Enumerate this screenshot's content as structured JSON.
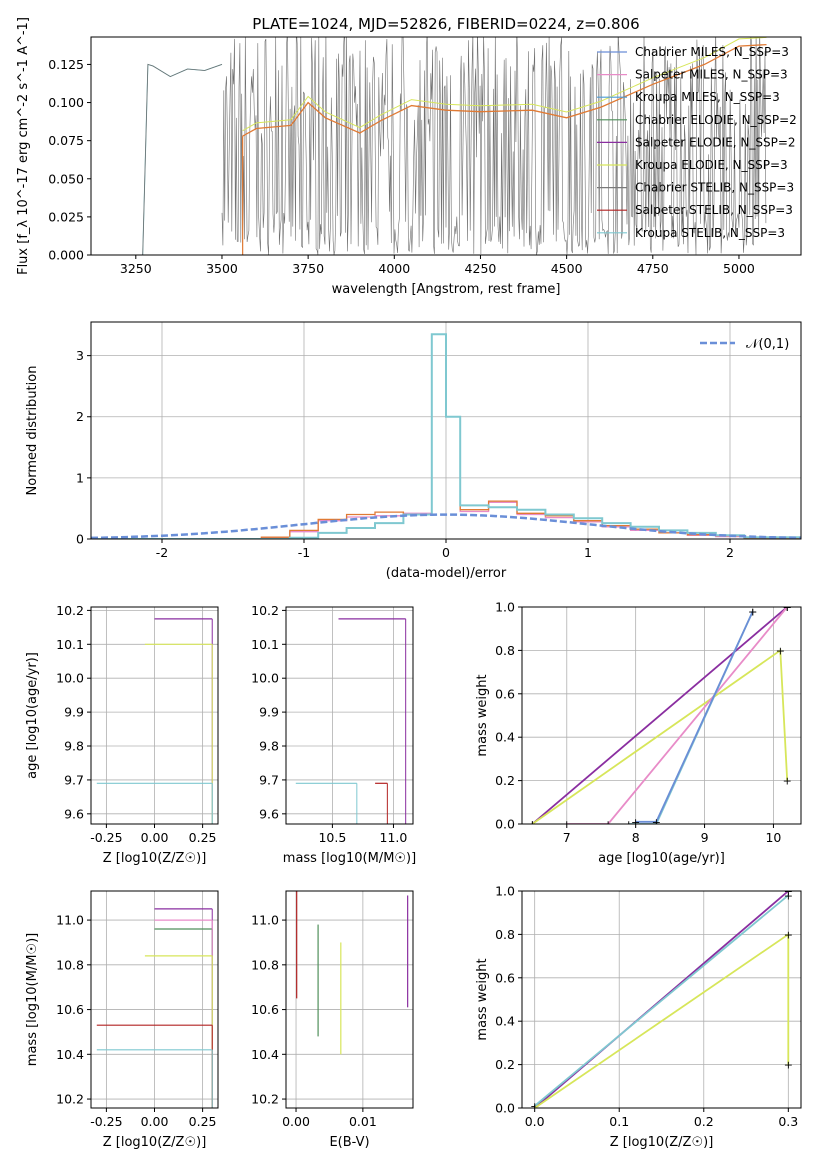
{
  "figure": {
    "title": "PLATE=1024, MJD=52826, FIBERID=0224, z=0.806"
  },
  "colors": {
    "Chabrier MILES": "#6b8ed6",
    "Salpeter MILES": "#e88cc8",
    "Kroupa MILES": "#4c9bd6",
    "Chabrier ELODIE": "#4f8f5a",
    "Salpeter ELODIE": "#8a2ea0",
    "Kroupa ELODIE": "#d7e65a",
    "Chabrier STELIB": "#7a7a7a",
    "Salpeter STELIB": "#b22222",
    "Kroupa STELIB": "#7fc8d0",
    "spectrum": "#6f6f6f",
    "model": "#e07a34",
    "gaussian": "#6a8fd8",
    "grid": "#b0b0b0"
  },
  "chart_data": [
    {
      "id": "spectrum",
      "type": "line",
      "title": "PLATE=1024, MJD=52826, FIBERID=0224, z=0.806",
      "xlabel": "wavelength [Angstrom, rest frame]",
      "ylabel": "Flux [f_λ 10^-17 erg cm^-2 s^-1 A^-1]",
      "xlim": [
        3120,
        5180
      ],
      "ylim": [
        0,
        0.143
      ],
      "xticks": [
        3250,
        3500,
        3750,
        4000,
        4250,
        4500,
        4750,
        5000
      ],
      "yticks": [
        0.0,
        0.025,
        0.05,
        0.075,
        0.1,
        0.125
      ],
      "grid": false,
      "legend_position": "upper-right",
      "legend": [
        "Chabrier MILES, N_SSP=3",
        "Salpeter MILES, N_SSP=3",
        "Kroupa MILES, N_SSP=3",
        "Chabrier ELODIE, N_SSP=2",
        "Salpeter ELODIE, N_SSP=2",
        "Kroupa ELODIE, N_SSP=3",
        "Chabrier STELIB, N_SSP=3",
        "Salpeter STELIB, N_SSP=3",
        "Kroupa STELIB, N_SSP=3"
      ],
      "series": [
        {
          "name": "Chabrier STELIB",
          "role": "observed-spectrum",
          "x": [
            3200,
            3270,
            3285,
            3300,
            3350,
            3400,
            3450,
            3500
          ],
          "values": [
            0.0,
            0.0,
            0.125,
            0.124,
            0.117,
            0.122,
            0.121,
            0.125
          ]
        },
        {
          "name": "Salpeter MILES",
          "role": "model",
          "x": [
            3560,
            3600,
            3700,
            3750,
            3800,
            3900,
            3960,
            4050,
            4150,
            4250,
            4400,
            4500,
            4600,
            4750,
            4900,
            5000,
            5080
          ],
          "values": [
            0.078,
            0.083,
            0.085,
            0.1,
            0.09,
            0.08,
            0.088,
            0.098,
            0.095,
            0.094,
            0.095,
            0.09,
            0.097,
            0.112,
            0.125,
            0.137,
            0.138
          ]
        }
      ]
    },
    {
      "id": "residuals",
      "type": "line",
      "xlabel": "(data-model)/error",
      "ylabel": "Normed distribution",
      "xlim": [
        -2.5,
        2.5
      ],
      "ylim": [
        0,
        3.55
      ],
      "xticks": [
        -2,
        -1,
        0,
        1,
        2
      ],
      "yticks": [
        0,
        1,
        2,
        3
      ],
      "grid": true,
      "legend_position": "upper-right",
      "legend": [
        "𝒩(0,1)"
      ],
      "gaussian": {
        "mean": 0,
        "sigma": 1
      },
      "histogram_edges": [
        -2.5,
        -1.3,
        -1.1,
        -0.9,
        -0.7,
        -0.5,
        -0.3,
        -0.1,
        0.0,
        0.1,
        0.3,
        0.5,
        0.7,
        0.9,
        1.1,
        1.3,
        1.5,
        1.7,
        1.9,
        2.1,
        2.5
      ],
      "series": [
        {
          "name": "Chabrier MILES",
          "values": [
            0.0,
            0.02,
            0.12,
            0.3,
            0.36,
            0.38,
            0.42,
            3.35,
            2.0,
            0.45,
            0.6,
            0.4,
            0.35,
            0.28,
            0.2,
            0.14,
            0.1,
            0.06,
            0.04,
            0.02
          ]
        },
        {
          "name": "Salpeter MILES",
          "values": [
            0.0,
            0.03,
            0.14,
            0.32,
            0.4,
            0.44,
            0.4,
            3.35,
            2.0,
            0.48,
            0.62,
            0.42,
            0.38,
            0.3,
            0.22,
            0.16,
            0.1,
            0.07,
            0.05,
            0.02
          ]
        },
        {
          "name": "Kroupa STELIB",
          "values": [
            0.0,
            0.0,
            0.02,
            0.1,
            0.18,
            0.26,
            0.4,
            3.35,
            2.0,
            0.55,
            0.52,
            0.48,
            0.4,
            0.34,
            0.26,
            0.2,
            0.14,
            0.1,
            0.06,
            0.03
          ]
        }
      ]
    },
    {
      "id": "age-vs-Z",
      "type": "scatter",
      "xlabel": "Z [log10(Z/Z☉)]",
      "ylabel": "age [log10(age/yr)]",
      "xlim": [
        -0.33,
        0.33
      ],
      "ylim": [
        9.57,
        10.21
      ],
      "xticks": [
        -0.25,
        0.0,
        0.25
      ],
      "yticks": [
        9.6,
        9.7,
        9.8,
        9.9,
        10.0,
        10.1,
        10.2
      ],
      "grid": true,
      "series": [
        {
          "name": "Salpeter ELODIE",
          "x": [
            0.0,
            0.3
          ],
          "values": [
            10.175,
            10.175
          ]
        },
        {
          "name": "Kroupa ELODIE",
          "x": [
            -0.05,
            0.3
          ],
          "values": [
            10.1,
            10.1
          ]
        },
        {
          "name": "Kroupa STELIB",
          "x": [
            -0.3,
            0.3
          ],
          "values": [
            9.69,
            9.69
          ]
        }
      ]
    },
    {
      "id": "age-vs-mass",
      "type": "scatter",
      "xlabel": "mass [log10(M/M☉)]",
      "ylabel": "",
      "xlim": [
        10.12,
        11.16
      ],
      "ylim": [
        9.57,
        10.21
      ],
      "xticks": [
        10.5,
        11.0
      ],
      "yticks": [
        9.6,
        9.7,
        9.8,
        9.9,
        10.0,
        10.1,
        10.2
      ],
      "grid": true,
      "series": [
        {
          "name": "Salpeter ELODIE",
          "x": [
            10.55,
            11.1
          ],
          "values": [
            10.175,
            10.175
          ]
        },
        {
          "name": "Kroupa STELIB",
          "x": [
            10.2,
            10.7
          ],
          "values": [
            9.69,
            9.69
          ]
        },
        {
          "name": "Salpeter STELIB",
          "x": [
            10.85,
            10.95
          ],
          "values": [
            9.69,
            9.69
          ]
        }
      ]
    },
    {
      "id": "mass-weight-vs-age",
      "type": "line",
      "xlabel": "age [log10(age/yr)]",
      "ylabel": "mass weight",
      "xlim": [
        6.35,
        10.4
      ],
      "ylim": [
        0,
        1
      ],
      "xticks": [
        7,
        8,
        9,
        10
      ],
      "yticks": [
        0.0,
        0.2,
        0.4,
        0.6,
        0.8,
        1.0
      ],
      "grid": true,
      "series": [
        {
          "name": "Salpeter ELODIE",
          "x": [
            6.5,
            10.2
          ],
          "values": [
            0.0,
            1.0
          ]
        },
        {
          "name": "Kroupa ELODIE",
          "x": [
            6.5,
            10.1,
            10.2
          ],
          "values": [
            0.0,
            0.8,
            0.2
          ]
        },
        {
          "name": "Salpeter MILES",
          "x": [
            7.0,
            7.6,
            10.2
          ],
          "values": [
            0.0,
            0.0,
            1.0
          ]
        },
        {
          "name": "Kroupa STELIB",
          "x": [
            7.9,
            8.3,
            9.7
          ],
          "values": [
            0.0,
            0.0,
            0.98
          ]
        },
        {
          "name": "Chabrier MILES",
          "x": [
            8.0,
            8.3,
            9.7
          ],
          "values": [
            0.01,
            0.01,
            0.98
          ]
        }
      ]
    },
    {
      "id": "mass-vs-Z",
      "type": "scatter",
      "xlabel": "Z [log10(Z/Z☉)]",
      "ylabel": "mass [log10(M/M☉)]",
      "xlim": [
        -0.33,
        0.33
      ],
      "ylim": [
        10.16,
        11.13
      ],
      "xticks": [
        -0.25,
        0.0,
        0.25
      ],
      "yticks": [
        10.2,
        10.4,
        10.6,
        10.8,
        11.0
      ],
      "grid": true,
      "series": [
        {
          "name": "Salpeter ELODIE",
          "x": [
            0.0,
            0.3
          ],
          "values": [
            11.05,
            11.05
          ]
        },
        {
          "name": "Chabrier ELODIE",
          "x": [
            0.0,
            0.3
          ],
          "values": [
            10.96,
            10.96
          ]
        },
        {
          "name": "Salpeter MILES",
          "x": [
            0.0,
            0.3
          ],
          "values": [
            11.0,
            11.0
          ]
        },
        {
          "name": "Kroupa ELODIE",
          "x": [
            -0.05,
            0.3
          ],
          "values": [
            10.84,
            10.84
          ]
        },
        {
          "name": "Salpeter STELIB",
          "x": [
            -0.3,
            0.3
          ],
          "values": [
            10.53,
            10.53
          ]
        },
        {
          "name": "Kroupa STELIB",
          "x": [
            -0.3,
            0.3
          ],
          "values": [
            10.42,
            10.42
          ]
        }
      ]
    },
    {
      "id": "mass-vs-EBV",
      "type": "scatter",
      "xlabel": "E(B-V)",
      "ylabel": "",
      "xlim": [
        -0.0015,
        0.0175
      ],
      "ylim": [
        10.16,
        11.13
      ],
      "xticks": [
        0.0,
        0.01
      ],
      "yticks": [
        10.2,
        10.4,
        10.6,
        10.8,
        11.0
      ],
      "grid": true,
      "series": [
        {
          "name": "Salpeter ELODIE",
          "x": [
            0.0167
          ],
          "values": [
            10.86
          ]
        },
        {
          "name": "Chabrier ELODIE",
          "x": [
            0.0033
          ],
          "values": [
            10.73
          ]
        },
        {
          "name": "Kroupa ELODIE",
          "x": [
            0.0067
          ],
          "values": [
            10.65
          ]
        },
        {
          "name": "Salpeter STELIB",
          "x": [
            0.0001
          ],
          "values": [
            10.9
          ]
        }
      ]
    },
    {
      "id": "mass-weight-vs-Z",
      "type": "line",
      "xlabel": "Z [log10(Z/Z☉)]",
      "ylabel": "mass weight",
      "xlim": [
        -0.015,
        0.315
      ],
      "ylim": [
        0,
        1
      ],
      "xticks": [
        0.0,
        0.1,
        0.2,
        0.3
      ],
      "yticks": [
        0.0,
        0.2,
        0.4,
        0.6,
        0.8,
        1.0
      ],
      "grid": true,
      "series": [
        {
          "name": "Salpeter ELODIE",
          "x": [
            0.0,
            0.3
          ],
          "values": [
            0.0,
            1.0
          ]
        },
        {
          "name": "Kroupa STELIB",
          "x": [
            0.0,
            0.3
          ],
          "values": [
            0.01,
            0.98
          ]
        },
        {
          "name": "Kroupa ELODIE",
          "x": [
            0.0,
            0.3,
            0.3
          ],
          "values": [
            0.0,
            0.8,
            0.2
          ]
        }
      ]
    }
  ]
}
